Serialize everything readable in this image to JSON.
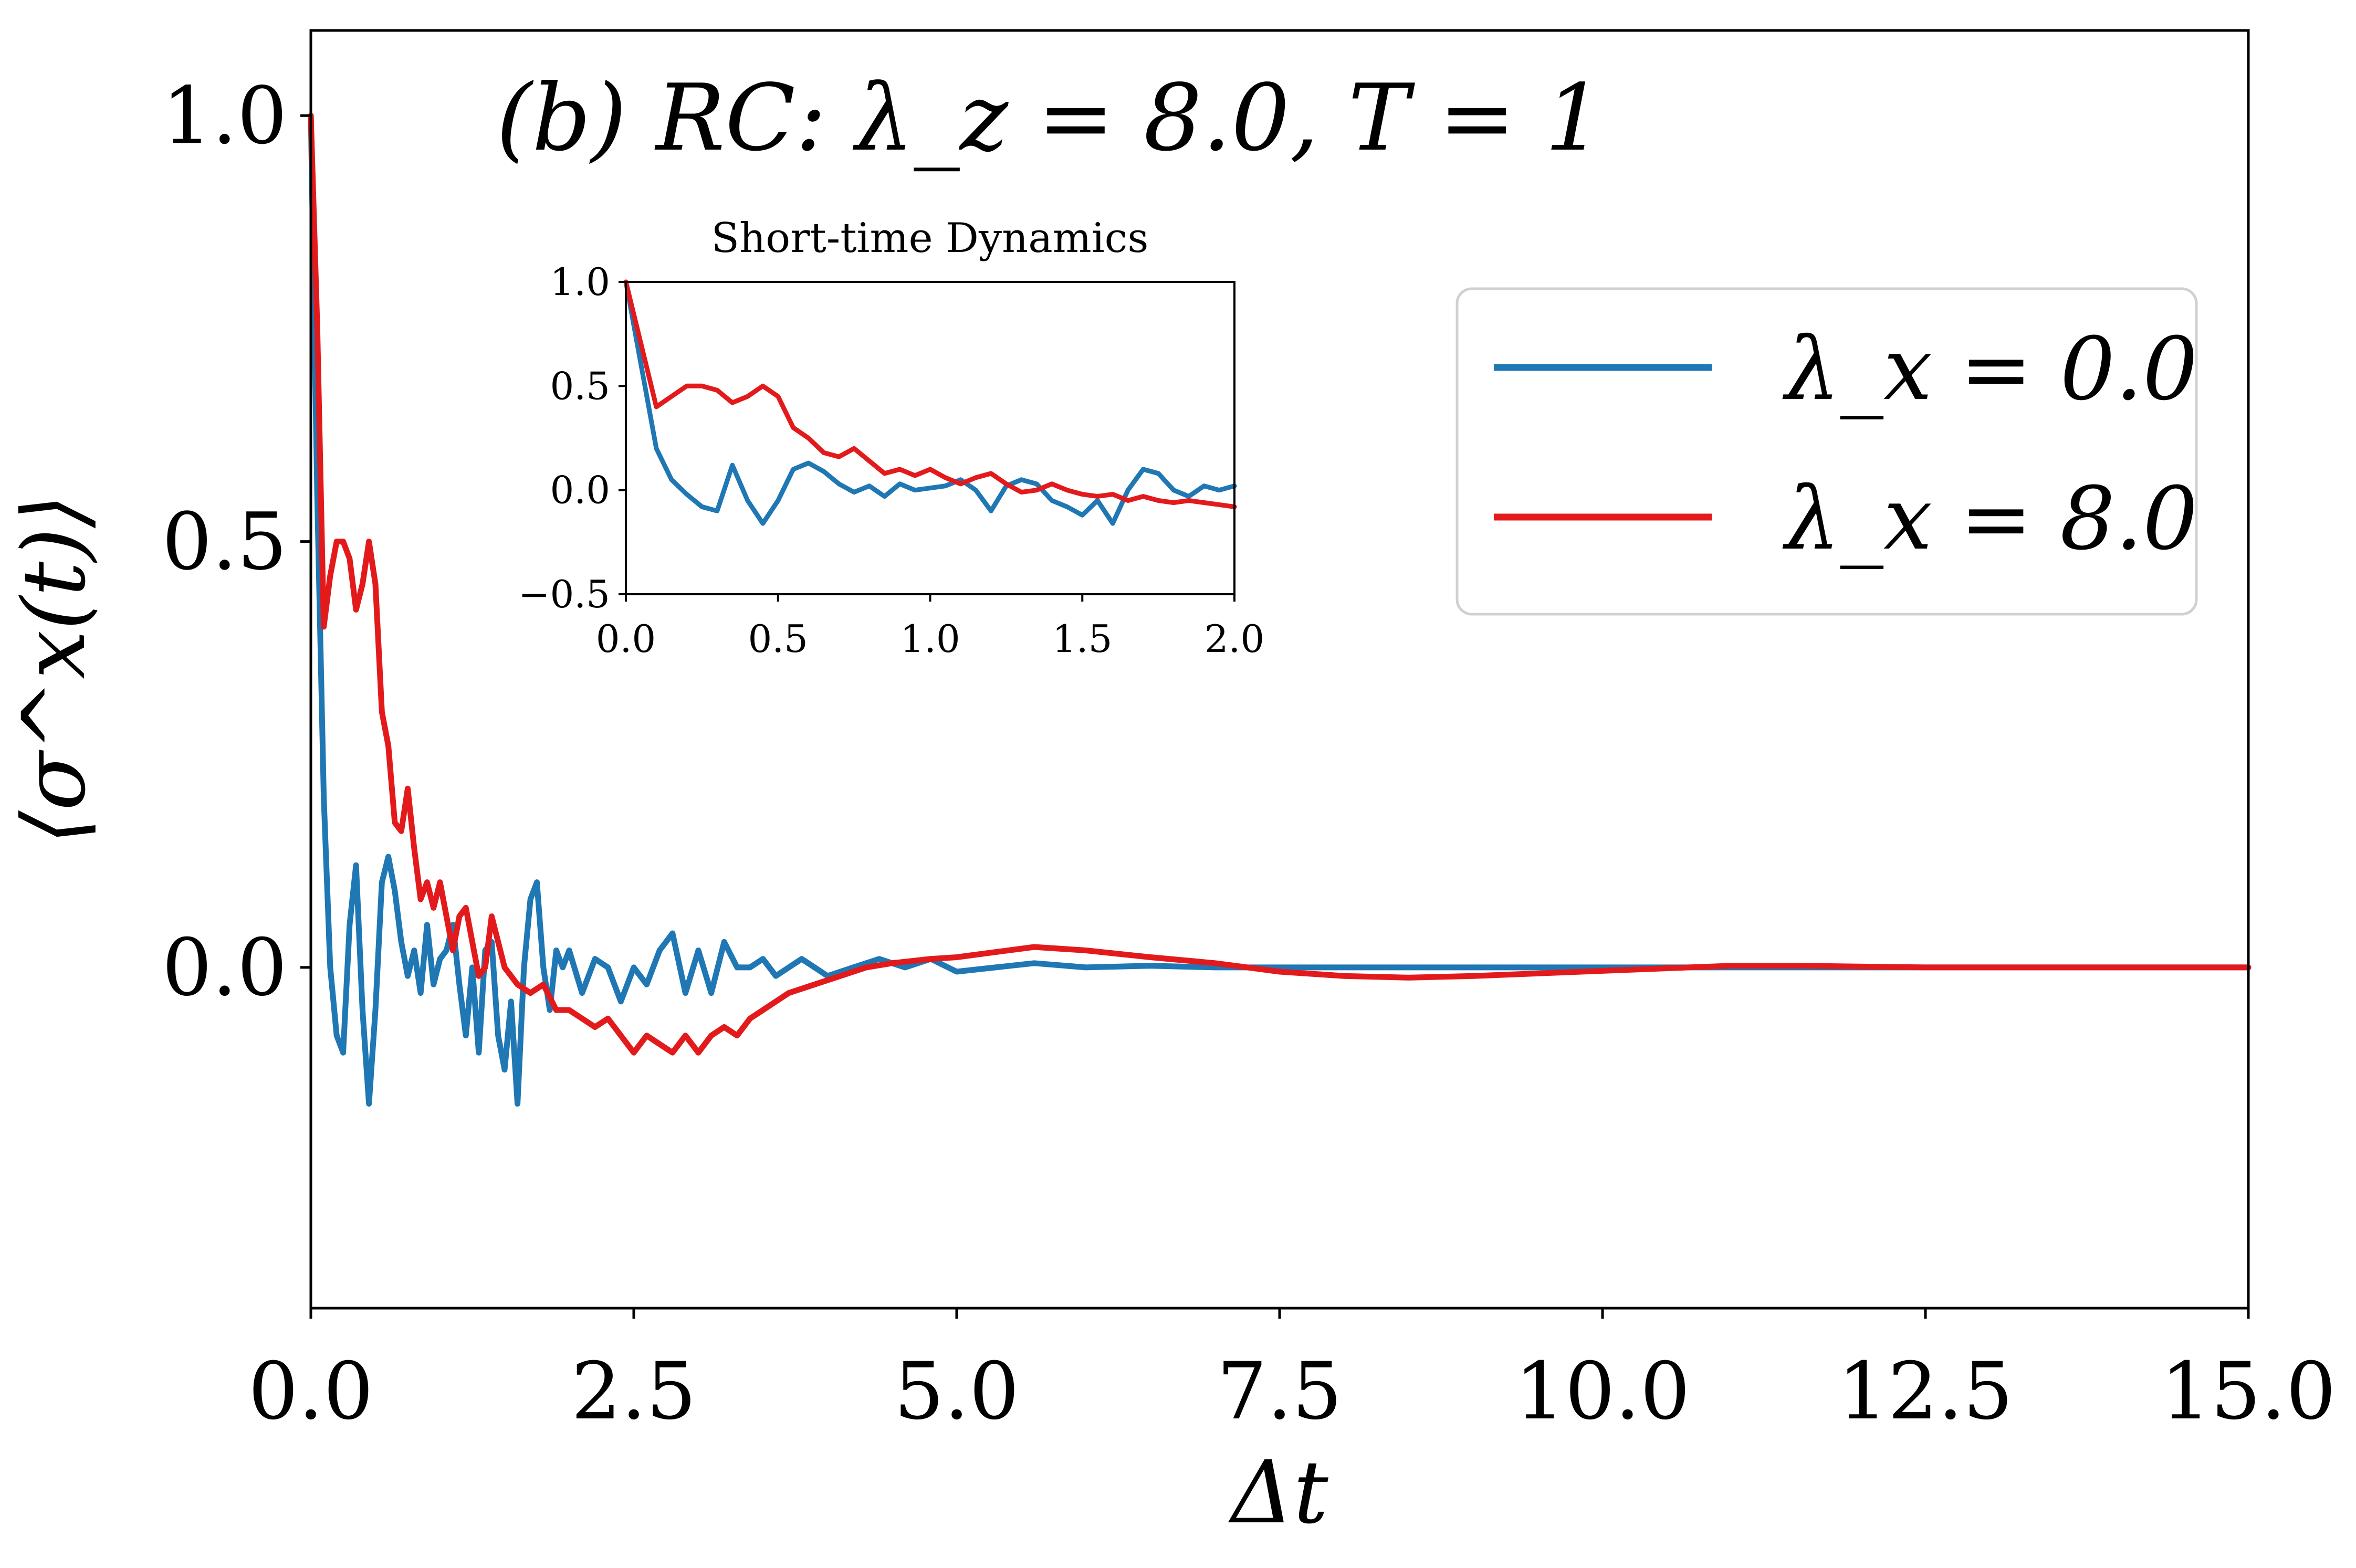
{
  "chart_data": [
    {
      "type": "line",
      "title": "(b) RC: λ_z = 8.0, T = 1",
      "xlabel": "Δt",
      "ylabel": "⟨σ^x(t)⟩",
      "xlim": [
        0,
        15
      ],
      "ylim": [
        -0.4,
        1.1
      ],
      "xticks": [
        "0.0",
        "2.5",
        "5.0",
        "7.5",
        "10.0",
        "12.5",
        "15.0"
      ],
      "yticks": [
        "0.0",
        "0.5",
        "1.0"
      ],
      "legend": {
        "placement": "upper-right",
        "entries": [
          "λ_x = 0.0",
          "λ_x = 8.0"
        ]
      },
      "series": [
        {
          "name": "λ_x = 0.0",
          "color": "#1f77b4",
          "x": [
            0,
            0.05,
            0.1,
            0.15,
            0.2,
            0.25,
            0.3,
            0.35,
            0.4,
            0.45,
            0.5,
            0.55,
            0.6,
            0.65,
            0.7,
            0.75,
            0.8,
            0.85,
            0.9,
            0.95,
            1.0,
            1.05,
            1.1,
            1.15,
            1.2,
            1.25,
            1.3,
            1.35,
            1.4,
            1.45,
            1.5,
            1.55,
            1.6,
            1.65,
            1.7,
            1.75,
            1.8,
            1.85,
            1.9,
            1.95,
            2.0,
            2.1,
            2.2,
            2.3,
            2.4,
            2.5,
            2.6,
            2.7,
            2.8,
            2.9,
            3.0,
            3.1,
            3.2,
            3.3,
            3.4,
            3.5,
            3.6,
            3.7,
            3.8,
            3.9,
            4.0,
            4.2,
            4.4,
            4.6,
            4.8,
            5.0,
            5.3,
            5.6,
            6.0,
            6.5,
            7.0,
            7.5,
            8.0,
            9.0,
            10.0,
            12.0,
            15.0
          ],
          "values": [
            1.0,
            0.55,
            0.2,
            0.0,
            -0.08,
            -0.1,
            0.05,
            0.12,
            -0.05,
            -0.16,
            -0.05,
            0.1,
            0.13,
            0.09,
            0.03,
            -0.01,
            0.02,
            -0.03,
            0.05,
            -0.02,
            0.01,
            0.02,
            0.05,
            -0.02,
            -0.08,
            0.0,
            -0.1,
            0.02,
            0.03,
            -0.08,
            -0.12,
            -0.04,
            -0.16,
            0.0,
            0.08,
            0.1,
            0.0,
            -0.05,
            0.02,
            0.0,
            0.02,
            -0.03,
            0.01,
            0.0,
            -0.04,
            0.0,
            -0.02,
            0.02,
            0.04,
            -0.03,
            0.02,
            -0.03,
            0.03,
            0.0,
            0.0,
            0.01,
            -0.01,
            0.0,
            0.01,
            0.0,
            -0.01,
            0.0,
            0.01,
            0.0,
            0.01,
            -0.005,
            0.0,
            0.005,
            0.0,
            0.002,
            0.0,
            0.0,
            0.0,
            0.0,
            0.0,
            0.0,
            0.0
          ]
        },
        {
          "name": "λ_x = 8.0",
          "color": "#e31a1c",
          "x": [
            0,
            0.05,
            0.1,
            0.15,
            0.2,
            0.25,
            0.3,
            0.35,
            0.4,
            0.45,
            0.5,
            0.55,
            0.6,
            0.65,
            0.7,
            0.75,
            0.8,
            0.85,
            0.9,
            0.95,
            1.0,
            1.05,
            1.1,
            1.15,
            1.2,
            1.25,
            1.3,
            1.35,
            1.4,
            1.5,
            1.6,
            1.7,
            1.8,
            1.9,
            2.0,
            2.1,
            2.2,
            2.3,
            2.4,
            2.5,
            2.6,
            2.7,
            2.8,
            2.9,
            3.0,
            3.1,
            3.2,
            3.3,
            3.4,
            3.5,
            3.7,
            3.9,
            4.1,
            4.3,
            4.5,
            4.8,
            5.0,
            5.3,
            5.6,
            6.0,
            6.5,
            7.0,
            7.5,
            8.0,
            8.5,
            9.0,
            10.0,
            11.0,
            11.5,
            12.5,
            13.5,
            15.0
          ],
          "values": [
            1.0,
            0.75,
            0.4,
            0.46,
            0.5,
            0.5,
            0.48,
            0.42,
            0.45,
            0.5,
            0.45,
            0.3,
            0.26,
            0.17,
            0.16,
            0.21,
            0.14,
            0.08,
            0.1,
            0.07,
            0.1,
            0.06,
            0.02,
            0.06,
            0.07,
            0.03,
            -0.01,
            0.0,
            0.06,
            0.0,
            -0.02,
            -0.03,
            -0.02,
            -0.05,
            -0.05,
            -0.06,
            -0.07,
            -0.06,
            -0.08,
            -0.1,
            -0.08,
            -0.09,
            -0.1,
            -0.08,
            -0.1,
            -0.08,
            -0.07,
            -0.08,
            -0.06,
            -0.05,
            -0.03,
            -0.02,
            -0.01,
            0.0,
            0.005,
            0.01,
            0.012,
            0.018,
            0.024,
            0.02,
            0.012,
            0.005,
            -0.005,
            -0.01,
            -0.012,
            -0.01,
            -0.004,
            0.002,
            0.002,
            0.0,
            0.0,
            0.0
          ]
        }
      ]
    },
    {
      "type": "line",
      "title": "Short-time Dynamics",
      "xlim": [
        0,
        2.0
      ],
      "ylim": [
        -0.5,
        1.0
      ],
      "xticks": [
        "0.0",
        "0.5",
        "1.0",
        "1.5",
        "2.0"
      ],
      "yticks": [
        "−0.5",
        "0.0",
        "0.5",
        "1.0"
      ],
      "series": [
        {
          "name": "λ_x = 0.0",
          "color": "#1f77b4",
          "x": [
            0,
            0.05,
            0.1,
            0.15,
            0.2,
            0.25,
            0.3,
            0.35,
            0.4,
            0.45,
            0.5,
            0.55,
            0.6,
            0.65,
            0.7,
            0.75,
            0.8,
            0.85,
            0.9,
            0.95,
            1.0,
            1.05,
            1.1,
            1.15,
            1.2,
            1.25,
            1.3,
            1.35,
            1.4,
            1.45,
            1.5,
            1.55,
            1.6,
            1.65,
            1.7,
            1.75,
            1.8,
            1.85,
            1.9,
            1.95,
            2.0
          ],
          "values": [
            1.0,
            0.6,
            0.2,
            0.05,
            -0.02,
            -0.08,
            -0.1,
            0.12,
            -0.05,
            -0.16,
            -0.05,
            0.1,
            0.13,
            0.09,
            0.03,
            -0.01,
            0.02,
            -0.03,
            0.03,
            0.0,
            0.01,
            0.02,
            0.05,
            0.0,
            -0.1,
            0.02,
            0.05,
            0.03,
            -0.05,
            -0.08,
            -0.12,
            -0.05,
            -0.16,
            0.0,
            0.1,
            0.08,
            0.0,
            -0.03,
            0.02,
            0.0,
            0.02
          ]
        },
        {
          "name": "λ_x = 8.0",
          "color": "#e31a1c",
          "x": [
            0,
            0.05,
            0.1,
            0.15,
            0.2,
            0.25,
            0.3,
            0.35,
            0.4,
            0.45,
            0.5,
            0.55,
            0.6,
            0.65,
            0.7,
            0.75,
            0.8,
            0.85,
            0.9,
            0.95,
            1.0,
            1.05,
            1.1,
            1.15,
            1.2,
            1.25,
            1.3,
            1.35,
            1.4,
            1.45,
            1.5,
            1.55,
            1.6,
            1.65,
            1.7,
            1.75,
            1.8,
            1.85,
            1.9,
            1.95,
            2.0
          ],
          "values": [
            1.0,
            0.7,
            0.4,
            0.45,
            0.5,
            0.5,
            0.48,
            0.42,
            0.45,
            0.5,
            0.45,
            0.3,
            0.25,
            0.18,
            0.16,
            0.2,
            0.14,
            0.08,
            0.1,
            0.07,
            0.1,
            0.06,
            0.03,
            0.06,
            0.08,
            0.03,
            -0.01,
            0.0,
            0.03,
            0.0,
            -0.02,
            -0.03,
            -0.02,
            -0.05,
            -0.03,
            -0.05,
            -0.06,
            -0.05,
            -0.06,
            -0.07,
            -0.08
          ]
        }
      ]
    }
  ]
}
